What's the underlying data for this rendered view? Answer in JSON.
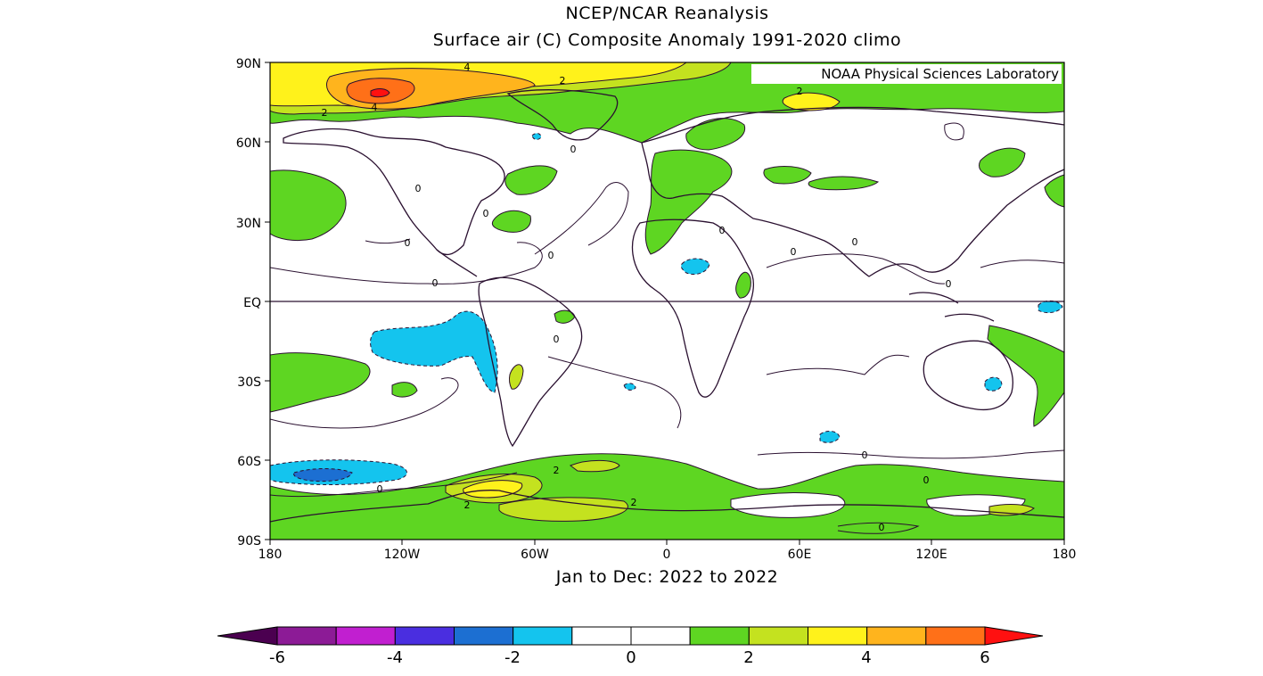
{
  "title": "NCEP/NCAR Reanalysis",
  "subtitle": "Surface air (C) Composite Anomaly 1991-2020 climo",
  "credit": "NOAA Physical Sciences Laboratory",
  "period": "Jan to Dec: 2022 to 2022",
  "lat_labels": [
    "90N",
    "60N",
    "30N",
    "EQ",
    "30S",
    "60S",
    "90S"
  ],
  "lon_labels": [
    "180",
    "120W",
    "60W",
    "0",
    "60E",
    "120E",
    "180"
  ],
  "contour_labels": [
    "4",
    "2",
    "2",
    "2",
    "4",
    "0",
    "0",
    "0",
    "0",
    "0",
    "0",
    "0",
    "0",
    "0",
    "0",
    "0",
    "2",
    "2",
    "2",
    "0",
    "0",
    "0",
    "0"
  ],
  "colorbar": {
    "tick_labels": [
      "-6",
      "-4",
      "-2",
      "0",
      "2",
      "4",
      "6"
    ],
    "colors": [
      "#8c1b96",
      "#c11fd0",
      "#4a2ee0",
      "#1c6fd2",
      "#14c4ee",
      "#ffffff",
      "#ffffff",
      "#5ed622",
      "#c4e21f",
      "#fff21b",
      "#ffb41d",
      "#ff7018"
    ],
    "under_color": "#4b0050",
    "over_color": "#ff1010"
  }
}
